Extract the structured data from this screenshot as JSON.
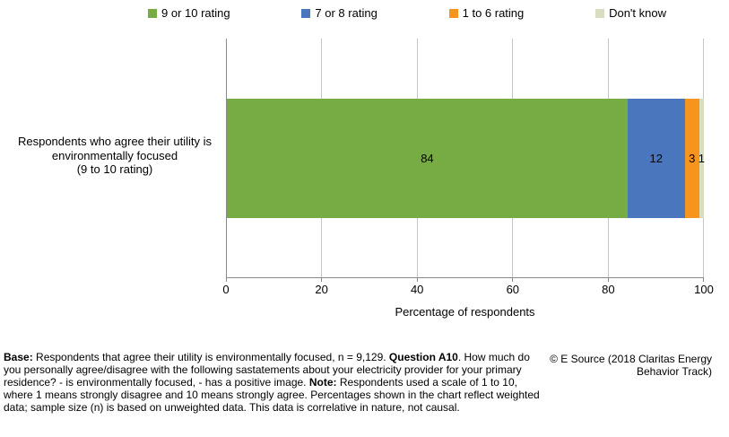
{
  "chart_data": {
    "type": "bar",
    "orientation": "horizontal",
    "stacked": true,
    "categories": [
      "Respondents who agree their utility is environmentally focused (9 to 10 rating)"
    ],
    "series": [
      {
        "name": "9 or 10 rating",
        "color": "#77AB43",
        "values": [
          84
        ]
      },
      {
        "name": "7 or 8 rating",
        "color": "#4A76BD",
        "values": [
          12
        ]
      },
      {
        "name": "1 to 6 rating",
        "color": "#F6941E",
        "values": [
          3
        ]
      },
      {
        "name": "Don't know",
        "color": "#D8DFC0",
        "values": [
          1
        ]
      }
    ],
    "xlabel": "Percentage of respondents",
    "xlim": [
      0,
      100
    ],
    "xticks": [
      0,
      20,
      40,
      60,
      80,
      100
    ],
    "legend_position": "top",
    "grid": true,
    "value_labels": true
  },
  "category_label_lines": [
    "Respondents who agree their utility is",
    "environmentally focused",
    "(9 to 10 rating)"
  ],
  "footer": {
    "segments": [
      {
        "text": "Base:",
        "bold": true
      },
      {
        "text": " Respondents that agree their utility is environmentally focused, n = 9,129. ",
        "bold": false
      },
      {
        "text": "Question A10",
        "bold": true
      },
      {
        "text": ". How much do you personally agree/disagree with the following sastatements about your electricity provider for your primary residence? - is environmentally focused, - has a positive image. ",
        "bold": false
      },
      {
        "text": "Note:",
        "bold": true
      },
      {
        "text": " Respondents used a scale of 1 to 10, where 1 means strongly disagree and 10 means strongly agree. Percentages shown in the chart reflect weighted data; sample size (n) is based on unweighted data. This data is correlative in nature, not causal.",
        "bold": false
      }
    ],
    "copyright": "© E Source (2018 Claritas Energy Behavior Track)"
  }
}
